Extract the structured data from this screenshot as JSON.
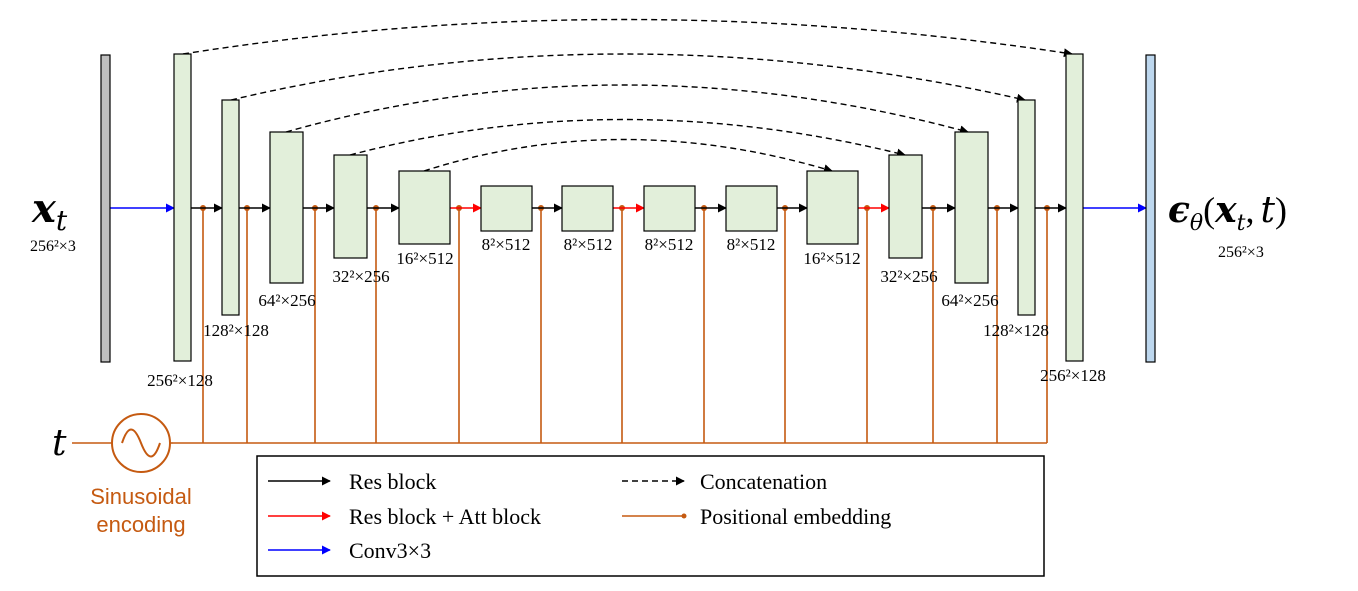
{
  "input": {
    "label": "x",
    "subscript": "t",
    "shape": "256²×3"
  },
  "output": {
    "prefix": "ϵ",
    "subscript": "θ",
    "open": "(",
    "arg_x": "x",
    "arg_sub": "t",
    "sep": ",",
    "arg_t": "t",
    "close": ")",
    "shape": "256²×3"
  },
  "time": {
    "label": "t",
    "encoder_label_1": "Sinusoidal",
    "encoder_label_2": "encoding"
  },
  "blocks": [
    {
      "id": "enc1",
      "label": "256²×128"
    },
    {
      "id": "enc2",
      "label": "128²×128"
    },
    {
      "id": "enc3",
      "label": "64²×256"
    },
    {
      "id": "enc4",
      "label": "32²×256"
    },
    {
      "id": "enc5",
      "label": "16²×512"
    },
    {
      "id": "mid1",
      "label": "8²×512"
    },
    {
      "id": "mid2",
      "label": "8²×512"
    },
    {
      "id": "mid3",
      "label": "8²×512"
    },
    {
      "id": "mid4",
      "label": "8²×512"
    },
    {
      "id": "dec5",
      "label": "16²×512"
    },
    {
      "id": "dec4",
      "label": "32²×256"
    },
    {
      "id": "dec3",
      "label": "64²×256"
    },
    {
      "id": "dec2",
      "label": "128²×128"
    },
    {
      "id": "dec1",
      "label": "256²×128"
    }
  ],
  "legend": {
    "res_block": "Res block",
    "res_att_block": "Res block + Att block",
    "conv": "Conv3×3",
    "concatenation": "Concatenation",
    "positional_embedding": "Positional embedding"
  },
  "colors": {
    "block_fill": "#e2efda",
    "input_fill": "#bfbfbf",
    "output_fill": "#bdd7ee",
    "res_arrow": "#000000",
    "att_arrow": "#ff0000",
    "conv_arrow": "#0000ff",
    "embedding": "#c55a11"
  }
}
